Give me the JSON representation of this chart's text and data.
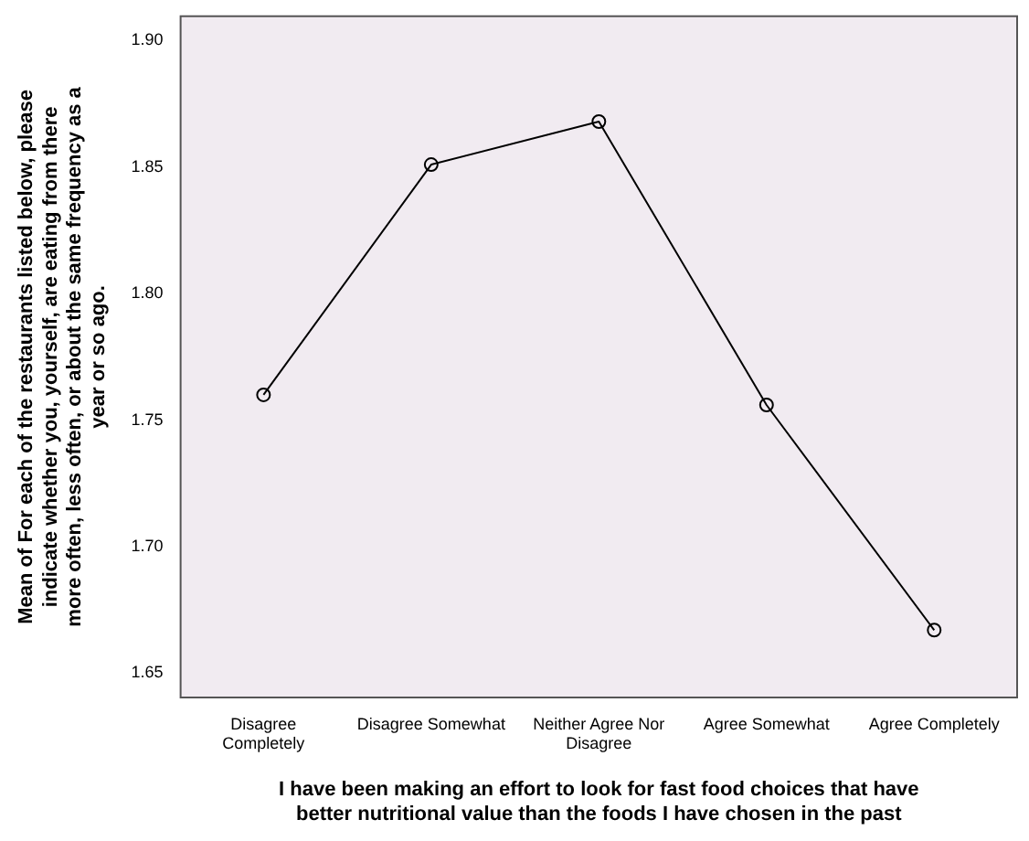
{
  "chart_data": {
    "type": "line",
    "xlabel": "I have been making an effort to look for fast food choices that have better nutritional value than the foods I have chosen in the past",
    "ylabel": "Mean of For each of the restaurants listed below, please indicate whether you, yourself, are eating from there more often, less often, or about the same frequency as a year or so ago.",
    "categories": [
      "Disagree Completely",
      "Disagree Somewhat",
      "Neither Agree Nor Disagree",
      "Agree Somewhat",
      "Agree Completely"
    ],
    "series": [
      {
        "color": "#000000",
        "values": [
          1.76,
          1.851,
          1.868,
          1.756,
          1.667
        ]
      }
    ],
    "ylim": [
      1.64,
      1.91
    ],
    "yticks": [
      {
        "value": 1.65,
        "label": "1.65"
      },
      {
        "value": 1.7,
        "label": "1.70"
      },
      {
        "value": 1.75,
        "label": "1.75"
      },
      {
        "value": 1.8,
        "label": "1.80"
      },
      {
        "value": 1.85,
        "label": "1.85"
      },
      {
        "value": 1.9,
        "label": "1.90"
      }
    ],
    "marker": "circle",
    "line_style": "solid",
    "grid": false,
    "legend": false
  }
}
